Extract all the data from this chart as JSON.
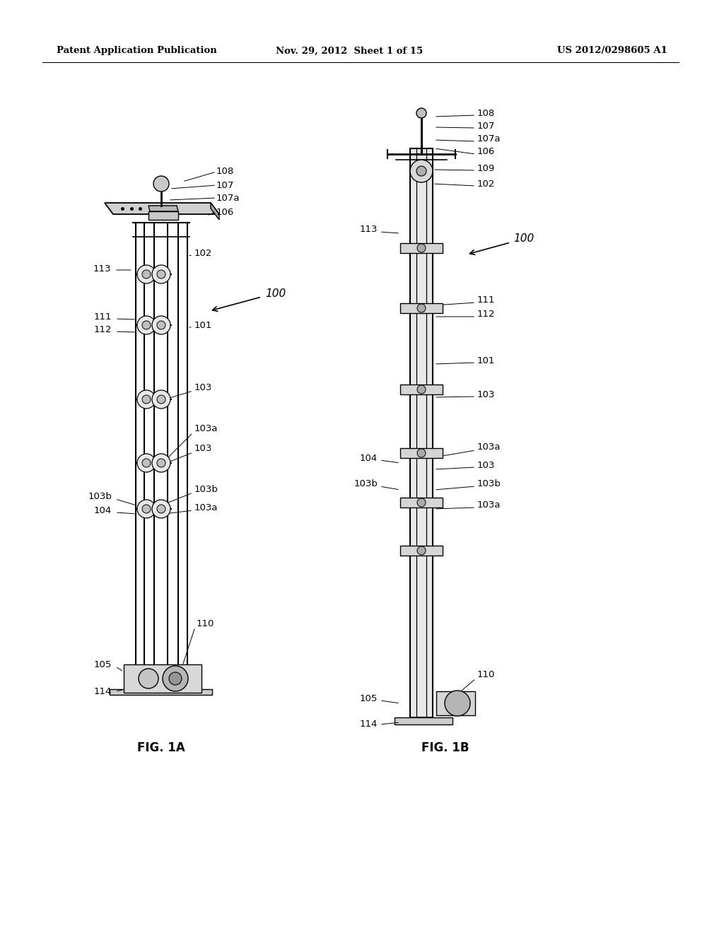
{
  "bg_color": "#ffffff",
  "header_left": "Patent Application Publication",
  "header_center": "Nov. 29, 2012  Sheet 1 of 15",
  "header_right": "US 2012/0298605 A1",
  "fig1a_label": "FIG. 1A",
  "fig1b_label": "FIG. 1B",
  "label_100": "100",
  "lw_col": 1.5,
  "fs_label": 9.5,
  "fs_fig": 12,
  "fs_header": 9.5
}
